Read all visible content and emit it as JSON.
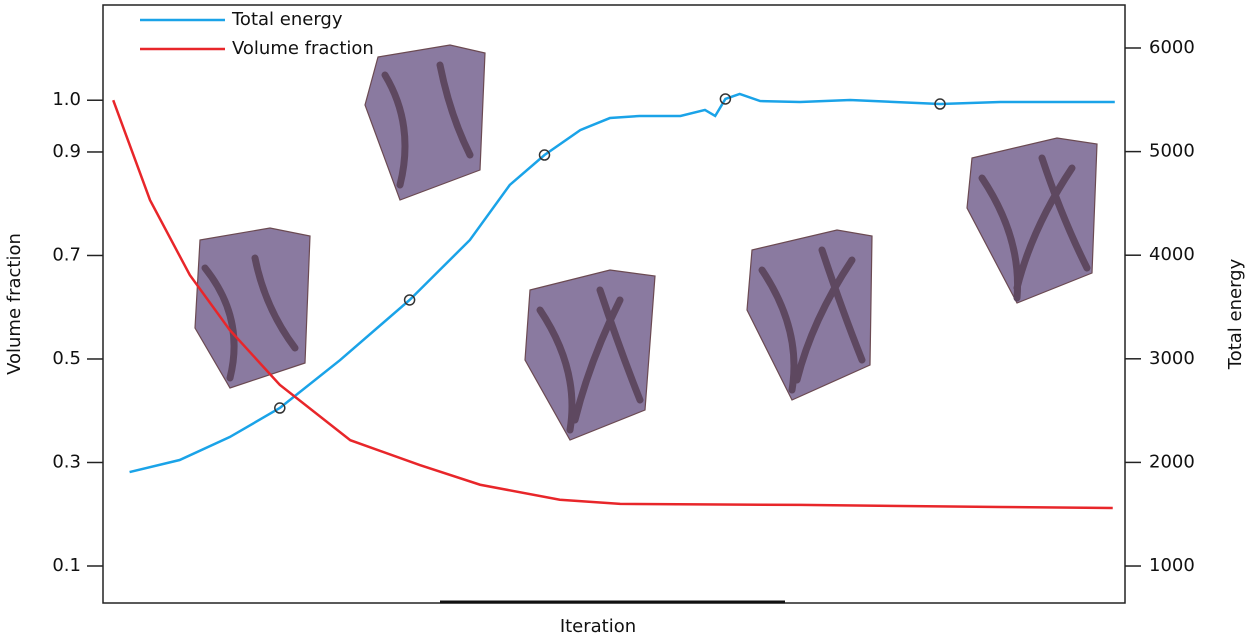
{
  "chart_data": {
    "type": "line",
    "x_label": "Iteration",
    "y_label": "Volume fraction",
    "y2_label": "Total energy",
    "xlim": [
      0,
      100
    ],
    "ylim": [
      0.0285,
      1.184
    ],
    "yticks": [
      {
        "value": 1.0,
        "label": "1.0"
      },
      0.9,
      0.7,
      0.5,
      0.3,
      0.1
    ],
    "y2lim": [
      643,
      6415
    ],
    "y2ticks": [
      6000,
      5000,
      4000,
      3000,
      2000,
      1000
    ],
    "series": [
      {
        "name": "Total energy",
        "color": "#1aa3e8",
        "axis": "y2",
        "x": [
          2.6,
          7.5,
          12.4,
          17.3,
          23.2,
          30.0,
          35.9,
          39.8,
          43.2,
          46.7,
          49.6,
          52.5,
          56.5,
          58.9,
          59.9,
          60.9,
          62.3,
          64.3,
          68.2,
          73.1,
          81.9,
          87.8,
          99.0
        ],
        "values": [
          1907,
          2023,
          2245,
          2525,
          2988,
          3568,
          4147,
          4678,
          4967,
          5208,
          5324,
          5344,
          5344,
          5402,
          5344,
          5508,
          5556,
          5488,
          5479,
          5498,
          5459,
          5479,
          5479
        ],
        "markers": [
          3,
          5,
          8,
          15,
          20
        ]
      },
      {
        "name": "Volume fraction",
        "color": "#e8262a",
        "axis": "y",
        "x": [
          1.0,
          4.6,
          8.5,
          12.4,
          17.3,
          24.2,
          31.0,
          36.9,
          44.7,
          50.6,
          68.2,
          87.8,
          98.8
        ],
        "values": [
          1.0,
          0.807,
          0.662,
          0.556,
          0.45,
          0.343,
          0.295,
          0.257,
          0.228,
          0.22,
          0.218,
          0.214,
          0.212
        ]
      }
    ]
  }
}
